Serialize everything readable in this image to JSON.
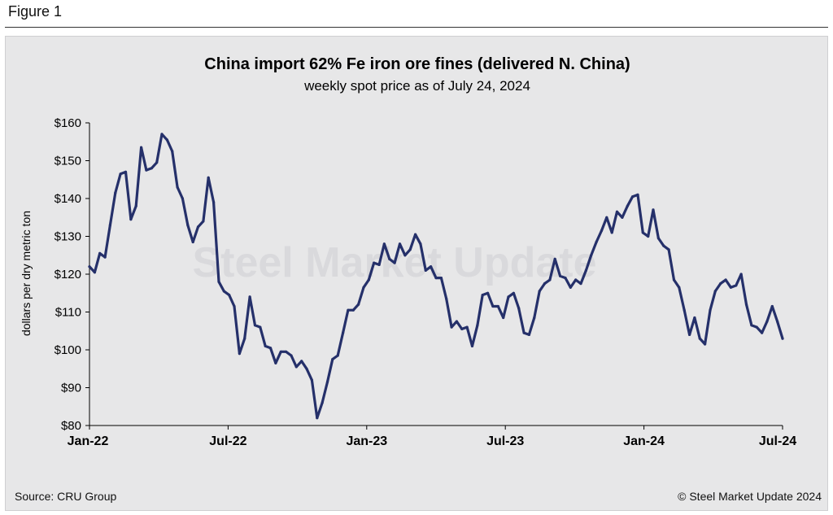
{
  "figure_label": "Figure 1",
  "source": "Source: CRU Group",
  "copyright": "© Steel Market Update 2024",
  "watermark": "Steel Market Update",
  "colors": {
    "line": "#25306a",
    "panel": "#e7e7e8"
  },
  "chart_data": {
    "type": "line",
    "title": "China import 62% Fe iron ore fines (delivered N. China)",
    "subtitle": "weekly spot price as of July 24, 2024",
    "xlabel": "",
    "ylabel": "dollars per dry metric ton",
    "ylim": [
      80,
      160
    ],
    "yticks": [
      "$80",
      "$90",
      "$100",
      "$110",
      "$120",
      "$130",
      "$140",
      "$150",
      "$160"
    ],
    "xticks": [
      "Jan-22",
      "Jul-22",
      "Jan-23",
      "Jul-23",
      "Jan-24",
      "Jul-24"
    ],
    "grid": false,
    "series": [
      {
        "values": [
          122,
          120.5,
          125.5,
          124.5,
          133,
          141.5,
          146.5,
          147,
          134.5,
          138,
          153.5,
          147.5,
          148,
          149.5,
          157,
          155.5,
          152.5,
          143,
          140,
          133,
          128.5,
          132.5,
          134,
          145.5,
          139,
          118,
          115.5,
          114.5,
          111.5,
          99,
          103,
          114,
          106.5,
          106,
          101,
          100.5,
          96.5,
          99.5,
          99.5,
          98.5,
          95.5,
          97,
          95,
          92,
          82,
          86,
          91.5,
          97.5,
          98.5,
          104.5,
          110.5,
          110.5,
          112,
          116.5,
          118.5,
          123,
          122.5,
          128,
          124,
          123,
          128,
          125,
          126.5,
          130.5,
          128,
          121,
          122,
          119,
          119,
          113.5,
          106,
          107.5,
          105.5,
          106,
          101,
          106.5,
          114.5,
          115,
          111.5,
          111.5,
          108.5,
          114,
          115,
          111,
          104.5,
          104,
          108.5,
          115.5,
          117.5,
          118.5,
          124,
          119.5,
          119,
          116.5,
          118.5,
          117.5,
          121,
          125,
          128.5,
          131.5,
          135,
          131,
          136.5,
          135,
          138,
          140.5,
          141,
          131,
          130,
          137,
          129.5,
          127.5,
          126.5,
          118.5,
          116.5,
          110.5,
          104,
          108.5,
          103,
          101.5,
          110.5,
          115.5,
          117.5,
          118.5,
          116.5,
          117,
          120,
          112,
          106.5,
          106,
          104.5,
          107.5,
          111.5,
          107.5,
          103
        ]
      }
    ]
  }
}
